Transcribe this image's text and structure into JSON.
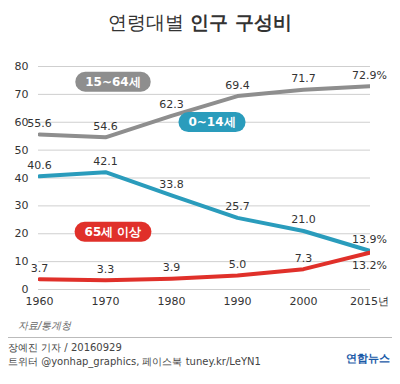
{
  "chart_data": {
    "type": "line",
    "title": "연령대별 인구 구성비",
    "categories": [
      "1960",
      "1970",
      "1980",
      "1990",
      "2000",
      "2015년"
    ],
    "series": [
      {
        "name": "15~64세",
        "color": "#8e8e8e",
        "values": [
          55.6,
          54.6,
          62.3,
          69.4,
          71.7,
          72.9
        ],
        "value_labels": [
          "55.6",
          "54.6",
          "62.3",
          "69.4",
          "71.7",
          "72.9%"
        ]
      },
      {
        "name": "0~14세",
        "color": "#2a9cbc",
        "values": [
          40.6,
          42.1,
          33.8,
          25.7,
          21.0,
          13.9
        ],
        "value_labels": [
          "40.6",
          "42.1",
          "33.8",
          "25.7",
          "21.0",
          "13.9%"
        ]
      },
      {
        "name": "65세 이상",
        "color": "#e0302a",
        "values": [
          3.7,
          3.3,
          3.9,
          5.0,
          7.3,
          13.2
        ],
        "value_labels": [
          "3.7",
          "3.3",
          "3.9",
          "5.0",
          "7.3",
          "13.2%"
        ]
      }
    ],
    "ylim": [
      0,
      80
    ],
    "yticks": [
      0,
      10,
      20,
      30,
      40,
      50,
      60,
      70,
      80
    ],
    "grid": true,
    "data_labels": true,
    "source": "자료/통계청",
    "byline": "장예진 기자 / 20160929",
    "social": "트위터 @yonhap_graphics, 페이스북 tuney.kr/LeYN1",
    "logo": "연합뉴스"
  }
}
